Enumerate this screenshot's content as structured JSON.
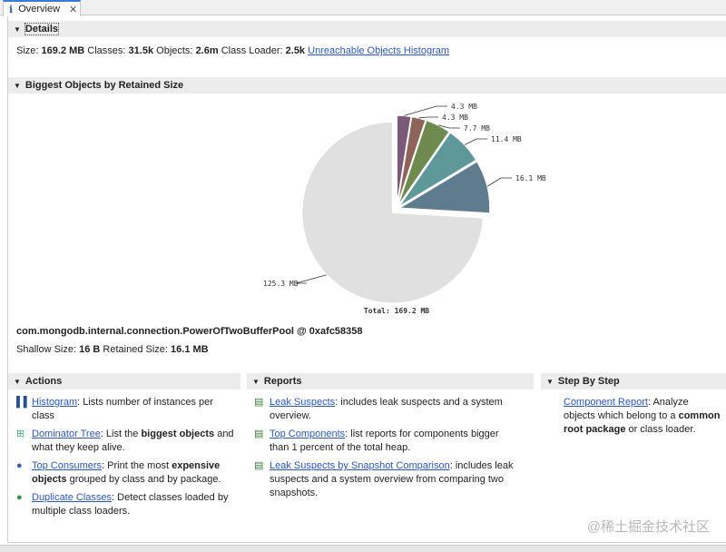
{
  "tab": {
    "label": "Overview",
    "icon": "info-icon"
  },
  "details": {
    "title": "Details",
    "size_label": "Size:",
    "size": "169.2 MB",
    "classes_label": "Classes:",
    "classes": "31.5k",
    "objects_label": "Objects:",
    "objects": "2.6m",
    "loader_label": "Class Loader:",
    "loader": "2.5k",
    "link": "Unreachable Objects Histogram"
  },
  "biggest": {
    "title": "Biggest Objects by Retained Size",
    "object": "com.mongodb.internal.connection.PowerOfTwoBufferPool @ 0xafc58358",
    "shallow_label": "Shallow Size:",
    "shallow": "16 B",
    "retained_label": "Retained Size:",
    "retained": "16.1 MB"
  },
  "chart_data": {
    "type": "pie",
    "unit": "MB",
    "total_label": "Total: 169.2 MB",
    "slices": [
      {
        "value": 4.3,
        "label": "4.3 MB",
        "color": "#7a5a78"
      },
      {
        "value": 4.3,
        "label": "4.3 MB",
        "color": "#8e6458"
      },
      {
        "value": 7.7,
        "label": "7.7 MB",
        "color": "#6e8a4e"
      },
      {
        "value": 11.4,
        "label": "11.4 MB",
        "color": "#5f9898"
      },
      {
        "value": 16.1,
        "label": "16.1 MB",
        "color": "#5e7c8e"
      },
      {
        "value": 125.3,
        "label": "125.3 MB",
        "color": "#e0e0e0"
      }
    ]
  },
  "actions": {
    "title": "Actions",
    "items": [
      {
        "link": "Histogram",
        "pre": ": Lists number of instances per class",
        "bold": "",
        "post": "",
        "icon": "histogram-icon"
      },
      {
        "link": "Dominator Tree",
        "pre": ": List the ",
        "bold": "biggest objects",
        "post": " and what they keep alive.",
        "icon": "dominator-tree-icon"
      },
      {
        "link": "Top Consumers",
        "pre": ": Print the most ",
        "bold": "expensive objects",
        "post": " grouped by class and by package.",
        "icon": "top-consumers-icon"
      },
      {
        "link": "Duplicate Classes",
        "pre": ": Detect classes loaded by multiple class loaders.",
        "bold": "",
        "post": "",
        "icon": "duplicate-classes-icon"
      }
    ]
  },
  "reports": {
    "title": "Reports",
    "items": [
      {
        "link": "Leak Suspects",
        "text": ": includes leak suspects and a system overview."
      },
      {
        "link": "Top Components",
        "text": ": list reports for components bigger than 1 percent of the total heap."
      },
      {
        "link": "Leak Suspects by Snapshot Comparison",
        "text": ": includes leak suspects and a system overview from comparing two snapshots."
      }
    ]
  },
  "step": {
    "title": "Step By Step",
    "link": "Component Report",
    "pre": ": Analyze objects which belong to a ",
    "bold": "common root package",
    "post": " or class loader."
  },
  "watermark": "@稀土掘金技术社区"
}
